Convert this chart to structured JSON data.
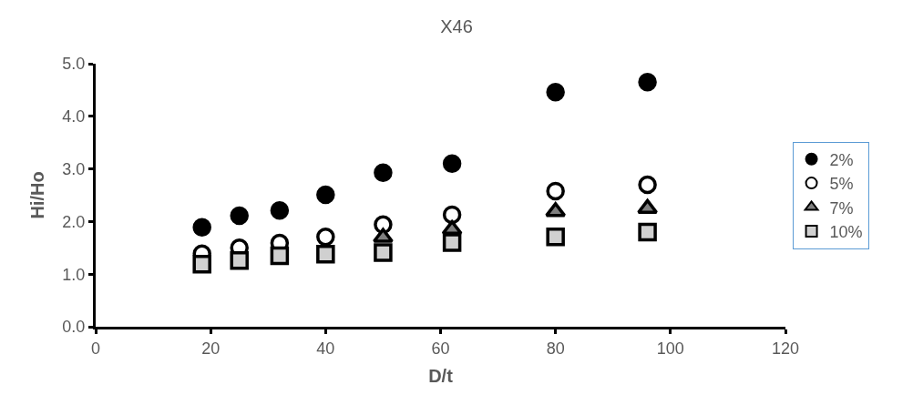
{
  "chart_data": {
    "type": "scatter",
    "title": "X46",
    "xlabel": "D/t",
    "ylabel": "Hi/Ho",
    "x": [
      18.5,
      25,
      32,
      40,
      50,
      62,
      80,
      96
    ],
    "series": [
      {
        "name": "2%",
        "color": "#000000",
        "marker": "circle",
        "values": [
          1.89,
          2.11,
          2.21,
          2.51,
          2.93,
          3.1,
          4.46,
          4.65
        ]
      },
      {
        "name": "5%",
        "color": "#ffffff",
        "marker": "circle",
        "values": [
          1.39,
          1.5,
          1.59,
          1.71,
          1.94,
          2.13,
          2.58,
          2.7
        ]
      },
      {
        "name": "7%",
        "color": "#808080",
        "marker": "triangle",
        "values": [
          null,
          null,
          null,
          null,
          1.7,
          1.85,
          2.19,
          2.25
        ]
      },
      {
        "name": "10%",
        "color": "#d0d0d0",
        "marker": "square",
        "values": [
          1.19,
          1.26,
          1.35,
          1.38,
          1.41,
          1.6,
          1.71,
          1.8
        ]
      }
    ],
    "xlim": [
      0,
      120
    ],
    "xticks": [
      0,
      20,
      40,
      60,
      80,
      100,
      120
    ],
    "ylim": [
      0,
      5
    ],
    "yticks": [
      {
        "value": 0,
        "label": "0.0"
      },
      {
        "value": 1,
        "label": "1.0"
      },
      {
        "value": 2,
        "label": "2.0"
      },
      {
        "value": 3,
        "label": "3.0"
      },
      {
        "value": 4,
        "label": "4.0"
      },
      {
        "value": 5,
        "label": "5.0"
      }
    ],
    "legend": "right"
  }
}
